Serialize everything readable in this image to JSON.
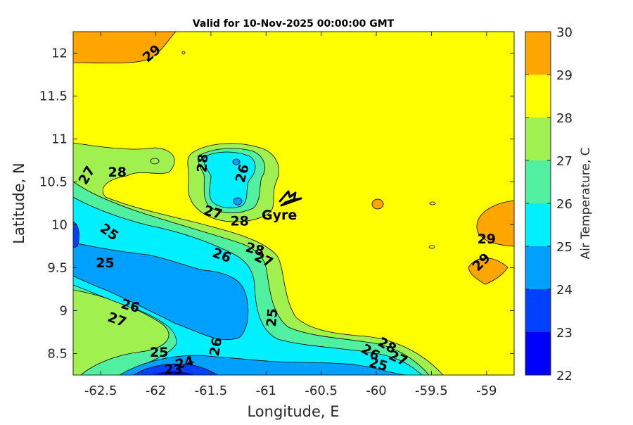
{
  "chart_data": {
    "type": "contour",
    "title": "Valid for 10-Nov-2025 00:00:00 GMT",
    "xlabel": "Longitude, E",
    "ylabel": "Latitude, N",
    "xlim": [
      -62.75,
      -58.75
    ],
    "ylim": [
      8.25,
      12.25
    ],
    "x_ticks": [
      -62.5,
      -62,
      -61.5,
      -61,
      -60.5,
      -60,
      -59.5,
      -59
    ],
    "x_tick_labels": [
      "-62.5",
      "-62",
      "-61.5",
      "-61",
      "-60.5",
      "-60",
      "-59.5",
      "-59"
    ],
    "y_ticks": [
      8.5,
      9,
      9.5,
      10,
      10.5,
      11,
      11.5,
      12
    ],
    "y_tick_labels": [
      "8.5",
      "9",
      "9.5",
      "10",
      "10.5",
      "11",
      "11.5",
      "12"
    ],
    "colorbar": {
      "label": "Air Temperature, C",
      "levels": [
        22,
        23,
        24,
        25,
        26,
        27,
        28,
        29,
        30
      ],
      "tick_labels": [
        "22",
        "23",
        "24",
        "25",
        "26",
        "27",
        "28",
        "29",
        "30"
      ],
      "colors": [
        "#0000ff",
        "#0040ff",
        "#00a0ff",
        "#00f0ff",
        "#50f0a0",
        "#a0f050",
        "#ffff00",
        "#ffa500",
        "#ff5000"
      ]
    },
    "contour_labels": [
      {
        "text": "29",
        "lon": -62.04,
        "lat": 12.0,
        "rotate": -40
      },
      {
        "text": "28",
        "lon": -62.35,
        "lat": 10.62,
        "rotate": 0
      },
      {
        "text": "27",
        "lon": -62.63,
        "lat": 10.58,
        "rotate": -60
      },
      {
        "text": "28",
        "lon": -61.58,
        "lat": 10.72,
        "rotate": -85
      },
      {
        "text": "26",
        "lon": -61.22,
        "lat": 10.6,
        "rotate": -75
      },
      {
        "text": "27",
        "lon": -61.48,
        "lat": 10.15,
        "rotate": 15
      },
      {
        "text": "28",
        "lon": -61.24,
        "lat": 10.05,
        "rotate": 0
      },
      {
        "text": "25",
        "lon": -62.42,
        "lat": 9.92,
        "rotate": 35
      },
      {
        "text": "26",
        "lon": -61.4,
        "lat": 9.65,
        "rotate": 20
      },
      {
        "text": "28",
        "lon": -61.1,
        "lat": 9.72,
        "rotate": 15
      },
      {
        "text": "27",
        "lon": -61.02,
        "lat": 9.6,
        "rotate": 25
      },
      {
        "text": "25",
        "lon": -62.46,
        "lat": 9.56,
        "rotate": 0
      },
      {
        "text": "26",
        "lon": -62.23,
        "lat": 9.06,
        "rotate": 15
      },
      {
        "text": "27",
        "lon": -62.35,
        "lat": 8.9,
        "rotate": 20
      },
      {
        "text": "25",
        "lon": -60.95,
        "lat": 8.92,
        "rotate": -85
      },
      {
        "text": "25",
        "lon": -61.97,
        "lat": 8.52,
        "rotate": 0
      },
      {
        "text": "26",
        "lon": -61.46,
        "lat": 8.58,
        "rotate": -80
      },
      {
        "text": "24",
        "lon": -61.74,
        "lat": 8.4,
        "rotate": -15
      },
      {
        "text": "23",
        "lon": -61.84,
        "lat": 8.32,
        "rotate": 0
      },
      {
        "text": "26",
        "lon": -60.05,
        "lat": 8.52,
        "rotate": 30
      },
      {
        "text": "28",
        "lon": -59.9,
        "lat": 8.6,
        "rotate": 30
      },
      {
        "text": "27",
        "lon": -59.8,
        "lat": 8.45,
        "rotate": 25
      },
      {
        "text": "25",
        "lon": -59.98,
        "lat": 8.38,
        "rotate": 15
      },
      {
        "text": "29",
        "lon": -59.0,
        "lat": 9.84,
        "rotate": 0
      },
      {
        "text": "29",
        "lon": -59.05,
        "lat": 9.57,
        "rotate": -45
      }
    ],
    "annotation": {
      "text": "Gyre",
      "lon": -60.88,
      "lat": 10.12
    }
  }
}
